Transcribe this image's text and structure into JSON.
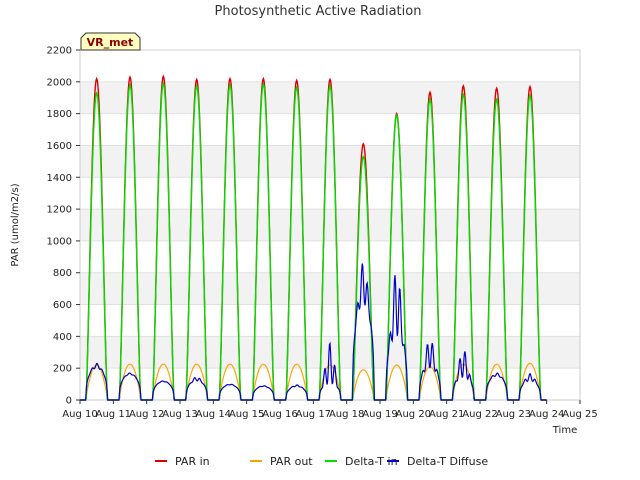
{
  "chart_data": {
    "type": "line",
    "title": "Photosynthetic Active Radiation",
    "site_label": "VR_met",
    "xlabel": "Time",
    "ylabel": "PAR (umol/m2/s)",
    "ylim": [
      0,
      2200
    ],
    "xlim": [
      "Aug 10",
      "Aug 25"
    ],
    "yticks": [
      0,
      200,
      400,
      600,
      800,
      1000,
      1200,
      1400,
      1600,
      1800,
      2000,
      2200
    ],
    "xtick_labels": [
      "Aug 10",
      "Aug 11",
      "Aug 12",
      "Aug 13",
      "Aug 14",
      "Aug 15",
      "Aug 16",
      "Aug 17",
      "Aug 18",
      "Aug 19",
      "Aug 20",
      "Aug 21",
      "Aug 22",
      "Aug 23",
      "Aug 24",
      "Aug 25"
    ],
    "grid": "alternating horizontal bands",
    "legend_position": "bottom-center",
    "daily_peaks": {
      "days": [
        "Aug 10",
        "Aug 11",
        "Aug 12",
        "Aug 13",
        "Aug 14",
        "Aug 15",
        "Aug 16",
        "Aug 17",
        "Aug 18",
        "Aug 19",
        "Aug 20",
        "Aug 21",
        "Aug 22",
        "Aug 23"
      ],
      "peak_time_offset_days": 0.5
    },
    "series": [
      {
        "name": "PAR in",
        "color": "#dd0000",
        "daily_max": [
          2020,
          2030,
          2035,
          2015,
          2020,
          2020,
          2010,
          2015,
          1610,
          1800,
          1935,
          1975,
          1960,
          1970
        ]
      },
      {
        "name": "PAR out",
        "color": "#ffa500",
        "daily_max": [
          220,
          225,
          225,
          225,
          225,
          225,
          225,
          220,
          190,
          220,
          210,
          225,
          225,
          230
        ]
      },
      {
        "name": "Delta-T in",
        "color": "#00dd00",
        "daily_max": [
          1930,
          1980,
          1990,
          1975,
          1980,
          1985,
          1965,
          1975,
          1530,
          1790,
          1890,
          1920,
          1890,
          1915
        ]
      },
      {
        "name": "Delta-T Diffuse",
        "color": "#0000cc",
        "daily_max": [
          230,
          170,
          120,
          145,
          100,
          90,
          95,
          360,
          870,
          830,
          390,
          320,
          170,
          165
        ],
        "daily_mean": [
          200,
          160,
          115,
          120,
          95,
          85,
          85,
          100,
          600,
          400,
          200,
          140,
          150,
          120
        ]
      }
    ]
  }
}
